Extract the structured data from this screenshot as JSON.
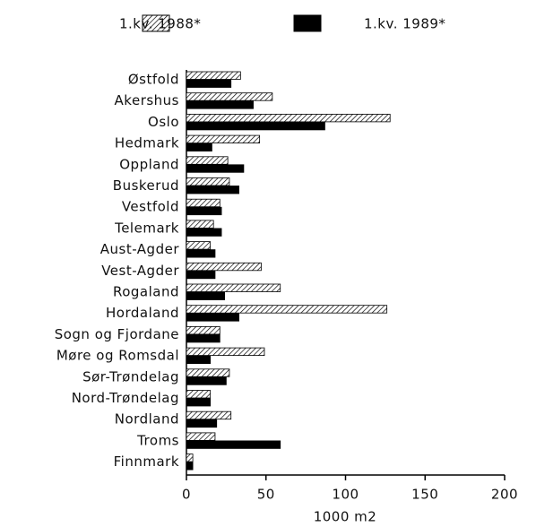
{
  "chart_data": {
    "type": "hbar",
    "x_label": "1000 m2",
    "categories": [
      "Østfold",
      "Akershus",
      "Oslo",
      "Hedmark",
      "Oppland",
      "Buskerud",
      "Vestfold",
      "Telemark",
      "Aust-Agder",
      "Vest-Agder",
      "Rogaland",
      "Hordaland",
      "Sogn og Fjordane",
      "Møre og Romsdal",
      "Sør-Trøndelag",
      "Nord-Trøndelag",
      "Nordland",
      "Troms",
      "Finnmark"
    ],
    "series": [
      {
        "name": "1.kv. 1988*",
        "color": "#000000",
        "pattern": "hatch",
        "values": [
          34,
          54,
          128,
          46,
          26,
          27,
          21,
          17,
          15,
          47,
          59,
          126,
          21,
          49,
          27,
          15,
          28,
          18,
          4
        ]
      },
      {
        "name": "1.kv. 1989*",
        "color": "#000000",
        "pattern": "solid",
        "values": [
          28,
          42,
          87,
          16,
          36,
          33,
          22,
          22,
          18,
          18,
          24,
          33,
          21,
          15,
          25,
          15,
          19,
          59,
          4
        ]
      }
    ],
    "xlim": [
      0,
      200
    ],
    "xticks": [
      0,
      50,
      100,
      150,
      200
    ]
  }
}
